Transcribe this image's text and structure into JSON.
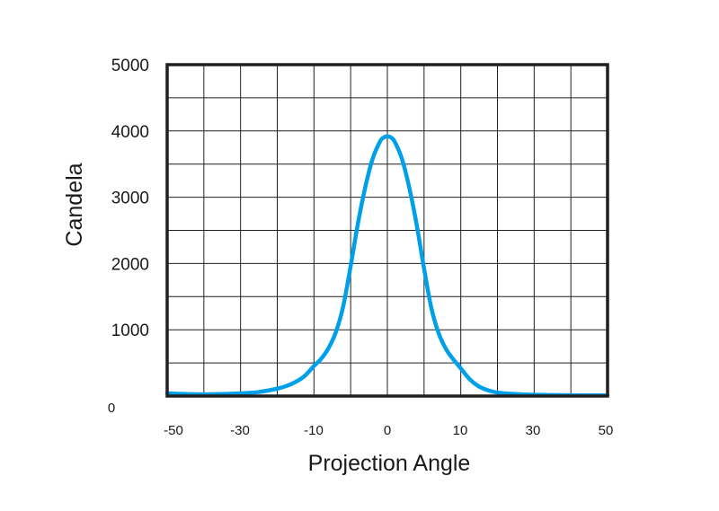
{
  "chart_data": {
    "type": "line",
    "title": "",
    "xlabel": "Projection Angle",
    "ylabel": "Candela",
    "x_ticks": [
      "-50",
      "-30",
      "-10",
      "0",
      "10",
      "30",
      "50"
    ],
    "y_ticks": [
      "0",
      "1000",
      "2000",
      "3000",
      "4000",
      "5000"
    ],
    "ylim": [
      0,
      5000
    ],
    "grid": true,
    "series_color": "#00a0e9",
    "series": [
      {
        "x": [
          -50,
          -45,
          -40,
          -35,
          -30,
          -25,
          -20,
          -17.5,
          -15,
          -12.5,
          -10,
          -9,
          -8,
          -7,
          -6,
          -5,
          -4,
          -3,
          -2,
          -1,
          -0.5,
          0,
          0.5,
          1,
          2,
          3,
          4,
          5,
          6,
          7,
          8,
          9,
          10,
          12.5,
          15,
          17.5,
          20,
          25,
          30,
          35,
          40,
          45,
          50
        ],
        "values": [
          40,
          30,
          25,
          30,
          40,
          60,
          110,
          150,
          210,
          300,
          450,
          560,
          720,
          960,
          1350,
          1950,
          2600,
          3150,
          3580,
          3840,
          3900,
          3920,
          3900,
          3840,
          3580,
          3150,
          2600,
          1950,
          1350,
          960,
          720,
          560,
          430,
          260,
          150,
          90,
          55,
          30,
          20,
          15,
          12,
          10,
          10
        ]
      }
    ]
  }
}
